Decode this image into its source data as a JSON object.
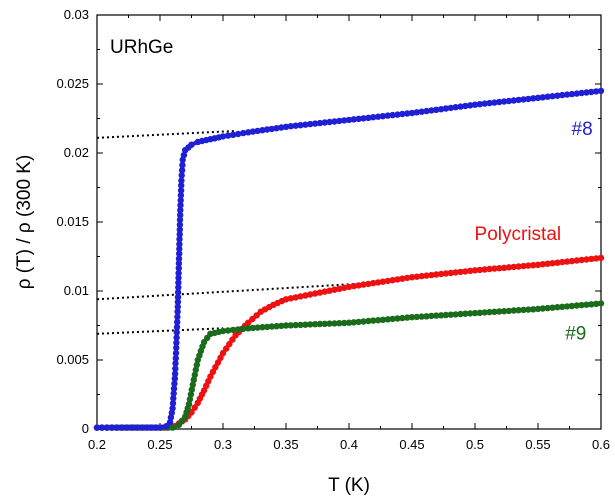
{
  "chart_data": {
    "type": "scatter",
    "title": "",
    "xlabel": "T (K)",
    "ylabel": "ρ (T) / ρ (300 K)",
    "xlim": [
      0.2,
      0.6
    ],
    "ylim": [
      0,
      0.03
    ],
    "xticks": [
      "0.2",
      "0.25",
      "0.3",
      "0.35",
      "0.4",
      "0.45",
      "0.5",
      "0.55",
      "0.6"
    ],
    "yticks": [
      "0",
      "0.005",
      "0.01",
      "0.015",
      "0.02",
      "0.025",
      "0.03"
    ],
    "grid": false,
    "annotations": {
      "sample": "URhGe"
    },
    "series": [
      {
        "name": "#8",
        "color": "#1f1fd6",
        "label_pos": [
          0.585,
          0.0213
        ],
        "x": [
          0.2,
          0.22,
          0.24,
          0.25,
          0.255,
          0.258,
          0.26,
          0.262,
          0.264,
          0.265,
          0.266,
          0.267,
          0.268,
          0.27,
          0.275,
          0.28,
          0.29,
          0.3,
          0.32,
          0.35,
          0.4,
          0.45,
          0.5,
          0.55,
          0.6
        ],
        "y": [
          0.0001,
          0.0001,
          0.0001,
          0.0001,
          0.0002,
          0.0005,
          0.0015,
          0.004,
          0.0085,
          0.012,
          0.0155,
          0.018,
          0.0195,
          0.0202,
          0.0206,
          0.0208,
          0.021,
          0.0212,
          0.0215,
          0.0219,
          0.0224,
          0.0229,
          0.0235,
          0.024,
          0.0245
        ]
      },
      {
        "name": "Polycristal",
        "color": "#ee1111",
        "label_pos": [
          0.534,
          0.0137
        ],
        "x": [
          0.2,
          0.24,
          0.255,
          0.26,
          0.265,
          0.27,
          0.275,
          0.28,
          0.285,
          0.29,
          0.3,
          0.31,
          0.32,
          0.33,
          0.34,
          0.35,
          0.4,
          0.45,
          0.5,
          0.55,
          0.6
        ],
        "y": [
          0.0001,
          0.0001,
          0.0001,
          0.0002,
          0.0004,
          0.0007,
          0.0012,
          0.0019,
          0.0028,
          0.0038,
          0.0055,
          0.0068,
          0.0077,
          0.0085,
          0.009,
          0.0094,
          0.0103,
          0.011,
          0.0115,
          0.0119,
          0.0124
        ]
      },
      {
        "name": "#9",
        "color": "#1a6b1a",
        "label_pos": [
          0.58,
          0.0065
        ],
        "x": [
          0.2,
          0.23,
          0.25,
          0.26,
          0.265,
          0.27,
          0.273,
          0.276,
          0.28,
          0.285,
          0.29,
          0.3,
          0.32,
          0.35,
          0.4,
          0.45,
          0.5,
          0.55,
          0.6
        ],
        "y": [
          0.0001,
          0.0001,
          0.0001,
          0.0001,
          0.0003,
          0.0009,
          0.0018,
          0.0032,
          0.005,
          0.0063,
          0.0069,
          0.0071,
          0.0073,
          0.0075,
          0.0077,
          0.0081,
          0.0084,
          0.0087,
          0.0091
        ]
      }
    ],
    "extrapolations": [
      {
        "name": "#8-fit",
        "x": [
          0.2,
          0.31
        ],
        "y": [
          0.0211,
          0.0216
        ]
      },
      {
        "name": "Polycristal-fit",
        "x": [
          0.2,
          0.44
        ],
        "y": [
          0.0094,
          0.0107
        ]
      },
      {
        "name": "#9-fit",
        "x": [
          0.2,
          0.3
        ],
        "y": [
          0.0069,
          0.0073
        ]
      }
    ]
  }
}
